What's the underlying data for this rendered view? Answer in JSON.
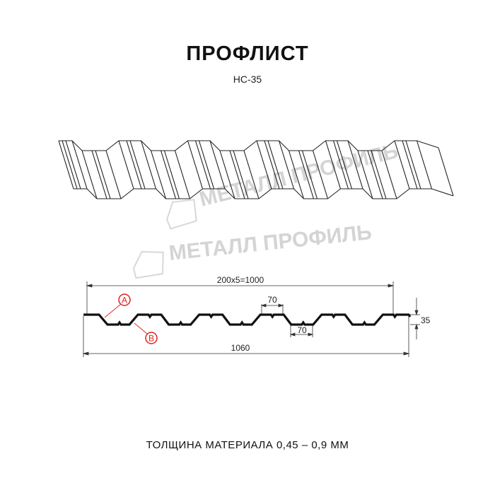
{
  "header": {
    "title": "ПРОФЛИСТ",
    "subtitle": "НС-35"
  },
  "watermark": "МЕТАЛЛ ПРОФИЛЬ",
  "dimensions": {
    "pitch": "200x5=1000",
    "top_flange": "70",
    "bottom_flange": "70",
    "height": "35",
    "total_width": "1060"
  },
  "markers": {
    "a": "A",
    "b": "B",
    "color": "#e0201c"
  },
  "footer": {
    "thickness": "ТОЛЩИНА МАТЕРИАЛА 0,45 – 0,9 ММ"
  }
}
